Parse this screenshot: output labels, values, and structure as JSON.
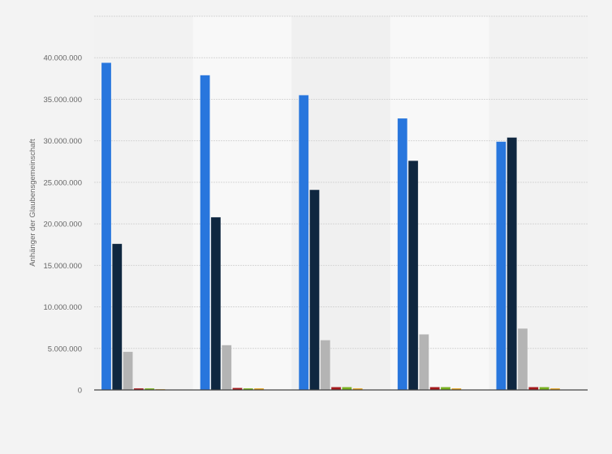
{
  "chart_data": {
    "type": "bar",
    "title": "",
    "xlabel": "",
    "ylabel": "Anhänger der Glaubensgemeinschaft",
    "ylim": [
      0,
      45000000
    ],
    "yticks": [
      0,
      5000000,
      10000000,
      15000000,
      20000000,
      25000000,
      30000000,
      35000000,
      40000000
    ],
    "ytick_labels": [
      "0",
      "5.000.000",
      "10.000.000",
      "15.000.000",
      "20.000.000",
      "25.000.000",
      "30.000.000",
      "35.000.000",
      "40.000.000"
    ],
    "grid": true,
    "legend": "none",
    "categories": [
      "",
      "",
      "",
      "",
      ""
    ],
    "series": [
      {
        "color": "#2876dd",
        "values": [
          39400000,
          37900000,
          35500000,
          32700000,
          29900000
        ]
      },
      {
        "color": "#0f2740",
        "values": [
          17600000,
          20800000,
          24100000,
          27600000,
          30400000
        ]
      },
      {
        "color": "#b4b4b4",
        "values": [
          4600000,
          5400000,
          6000000,
          6700000,
          7400000
        ]
      },
      {
        "color": "#a4191c",
        "values": [
          200000,
          250000,
          350000,
          350000,
          350000
        ]
      },
      {
        "color": "#78b020",
        "values": [
          200000,
          200000,
          350000,
          350000,
          350000
        ]
      },
      {
        "color": "#e0a020",
        "values": [
          100000,
          200000,
          200000,
          200000,
          200000
        ]
      }
    ]
  }
}
